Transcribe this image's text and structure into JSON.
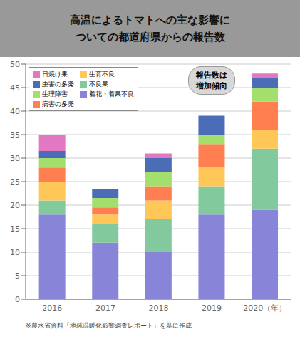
{
  "chart_data": {
    "type": "bar",
    "stacked": true,
    "title": "高温によるトマトへの主な影響に\nついての都道府県からの報告数",
    "annotations": [
      "報告数は\n増加傾向",
      "※農水省資料「地球温暖化影響調査レポート」を基に作成"
    ],
    "categories": [
      "2016",
      "2017",
      "2018",
      "2019",
      "2020（年）"
    ],
    "series": [
      {
        "name": "着花・着果不良",
        "color": "#8884d8",
        "values": [
          18,
          12,
          10,
          18,
          19
        ]
      },
      {
        "name": "不良果",
        "color": "#82ca9d",
        "values": [
          3,
          4,
          7,
          6,
          13
        ]
      },
      {
        "name": "生育不良",
        "color": "#ffc658",
        "values": [
          4,
          2,
          4,
          4,
          4
        ]
      },
      {
        "name": "病害の多発",
        "color": "#ff7f50",
        "values": [
          3,
          1.5,
          3,
          5,
          6
        ]
      },
      {
        "name": "生理障害",
        "color": "#a4de6c",
        "values": [
          2,
          2,
          3,
          2,
          3
        ]
      },
      {
        "name": "虫害の多発",
        "color": "#4b6cb7",
        "values": [
          1.5,
          2,
          3,
          4,
          2
        ]
      },
      {
        "name": "日焼け果",
        "color": "#e377c2",
        "values": [
          3.5,
          0,
          1,
          0,
          1
        ]
      }
    ],
    "ylim": [
      0,
      50
    ],
    "yticks": [
      0,
      5,
      10,
      15,
      20,
      25,
      30,
      35,
      40,
      45,
      50
    ],
    "grid": true,
    "legend": "upper left"
  }
}
